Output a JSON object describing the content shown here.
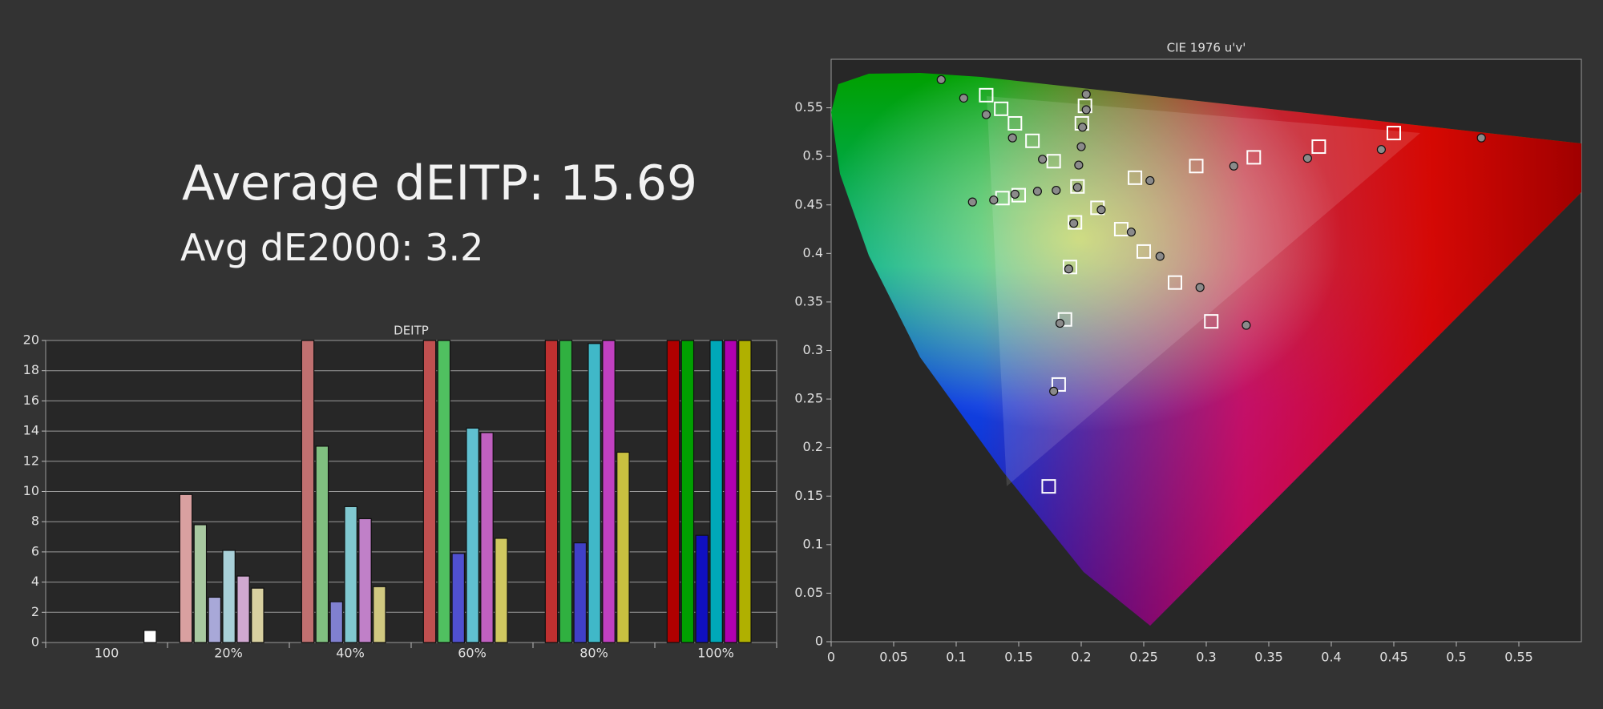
{
  "header": {
    "average": "Average dEITP: 15.69",
    "avg_de2000": "Avg dE2000: 3.2"
  },
  "chart_data": [
    {
      "type": "bar",
      "title": "DEITP",
      "categories": [
        "100",
        "20%",
        "40%",
        "60%",
        "80%",
        "100%"
      ],
      "ylim": [
        0,
        20
      ],
      "yticks": [
        0,
        2,
        4,
        6,
        8,
        10,
        12,
        14,
        16,
        18,
        20
      ],
      "grid": true,
      "series": [
        {
          "colors": [
            "#c09090",
            "#d9a0a0",
            "#c07070",
            "#c05050",
            "#c03030",
            "#b00000"
          ],
          "values": [
            null,
            9.8,
            20,
            20,
            20,
            20
          ]
        },
        {
          "colors": [
            "#90c090",
            "#a8c8a0",
            "#80c080",
            "#50c060",
            "#30b040",
            "#00a000"
          ],
          "values": [
            null,
            7.8,
            13.0,
            20,
            20,
            20
          ]
        },
        {
          "colors": [
            "#a0a0d0",
            "#a8a8d8",
            "#8080d0",
            "#5050d0",
            "#4040c8",
            "#1010c0"
          ],
          "values": [
            null,
            3.0,
            2.7,
            5.9,
            6.6,
            7.1
          ]
        },
        {
          "colors": [
            "#a0d0d0",
            "#a8d0d8",
            "#80c8d0",
            "#60c0d0",
            "#40b8c8",
            "#00a8b8"
          ],
          "values": [
            null,
            6.1,
            9.0,
            14.2,
            19.8,
            20
          ]
        },
        {
          "colors": [
            "#d0a0d0",
            "#d0a8d0",
            "#c080c8",
            "#c060c0",
            "#c040c0",
            "#b000b0"
          ],
          "values": [
            null,
            4.4,
            8.2,
            13.9,
            20,
            20
          ]
        },
        {
          "colors": [
            "#d0d0a0",
            "#d8d0a0",
            "#d0c880",
            "#d0c860",
            "#c8c040",
            "#b0b000"
          ],
          "values": [
            null,
            3.6,
            3.7,
            6.9,
            12.6,
            20
          ]
        },
        {
          "colors": [
            "#ffffff",
            "#ffffff",
            "#ffffff",
            "#ffffff",
            "#ffffff",
            "#ffffff"
          ],
          "values": [
            0.8,
            null,
            null,
            null,
            null,
            null
          ]
        }
      ]
    },
    {
      "type": "scatter",
      "title": "CIE 1976 u'v'",
      "xlim": [
        0,
        0.6
      ],
      "ylim": [
        0,
        0.6
      ],
      "xticks": [
        0,
        0.05,
        0.1,
        0.15,
        0.2,
        0.25,
        0.3,
        0.35,
        0.4,
        0.45,
        0.5,
        0.55
      ],
      "yticks": [
        0,
        0.05,
        0.1,
        0.15,
        0.2,
        0.25,
        0.3,
        0.35,
        0.4,
        0.45,
        0.5,
        0.55
      ],
      "series": [
        {
          "marker": "square",
          "color": "#ffffff",
          "x": [
            0.124,
            0.136,
            0.147,
            0.161,
            0.178,
            0.203,
            0.2005,
            0.197,
            0.195,
            0.191,
            0.187,
            0.182,
            0.174,
            0.15,
            0.137,
            0.213,
            0.232,
            0.25,
            0.275,
            0.304,
            0.243,
            0.292,
            0.338,
            0.39,
            0.45
          ],
          "values": [
            0.563,
            0.549,
            0.534,
            0.516,
            0.495,
            0.552,
            0.534,
            0.469,
            0.432,
            0.386,
            0.332,
            0.265,
            0.16,
            0.46,
            0.457,
            0.447,
            0.425,
            0.402,
            0.37,
            0.33,
            0.478,
            0.49,
            0.499,
            0.51,
            0.524
          ]
        },
        {
          "marker": "circle",
          "color": "#8a8a8a",
          "x": [
            0.088,
            0.106,
            0.124,
            0.145,
            0.169,
            0.204,
            0.204,
            0.201,
            0.2,
            0.198,
            0.197,
            0.194,
            0.19,
            0.183,
            0.178,
            0.113,
            0.13,
            0.147,
            0.165,
            0.18,
            0.216,
            0.24,
            0.263,
            0.295,
            0.332,
            0.255,
            0.322,
            0.381,
            0.44,
            0.52
          ],
          "values": [
            0.579,
            0.56,
            0.543,
            0.519,
            0.497,
            0.564,
            0.548,
            0.53,
            0.51,
            0.491,
            0.468,
            0.431,
            0.384,
            0.328,
            0.258,
            0.453,
            0.455,
            0.461,
            0.464,
            0.465,
            0.445,
            0.422,
            0.397,
            0.365,
            0.326,
            0.475,
            0.49,
            0.498,
            0.507,
            0.519
          ]
        }
      ]
    }
  ]
}
